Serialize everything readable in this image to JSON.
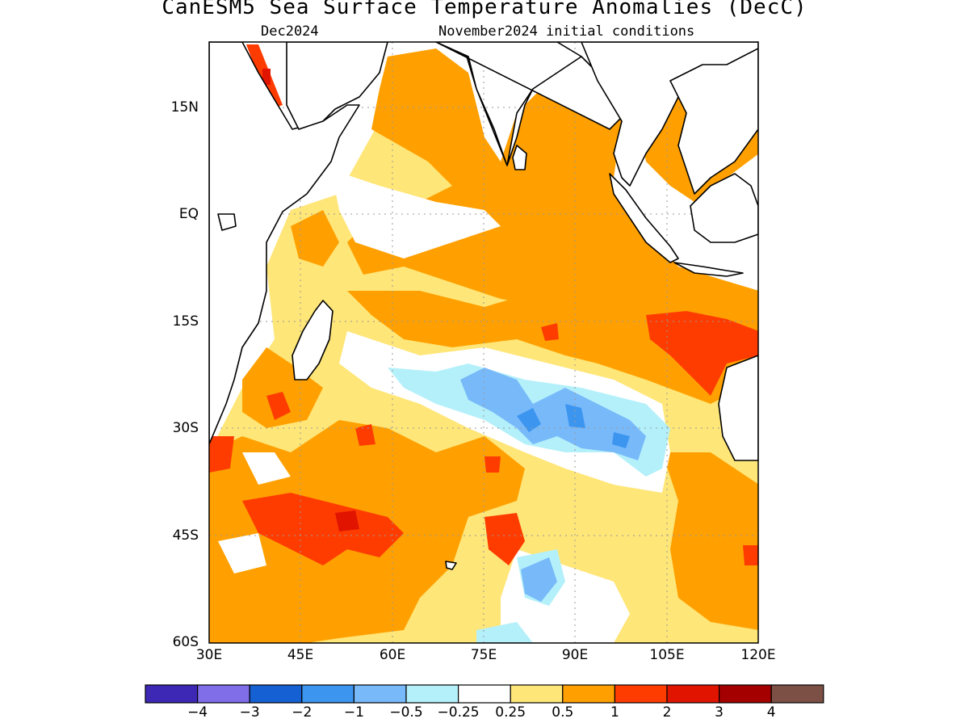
{
  "header": {
    "title": "CanESM5 Sea Surface Temperature Anomalies (DecC)",
    "valid_month": "Dec2024",
    "init_conditions": "November2024 initial conditions"
  },
  "map": {
    "lon_range": [
      30,
      120
    ],
    "lat_range": [
      -60,
      22
    ],
    "y_ticks": [
      "15N",
      "EQ",
      "15S",
      "30S",
      "45S",
      "60S"
    ],
    "x_ticks": [
      "30E",
      "45E",
      "60E",
      "75E",
      "90E",
      "105E",
      "120E"
    ],
    "grid": "dotted",
    "land_color": "#ffffff",
    "coast_color": "#000000"
  },
  "colorbar": {
    "colors": [
      "#3c28b4",
      "#7f6ee8",
      "#1560d2",
      "#3c96f0",
      "#78b9fa",
      "#b4f0fa",
      "#ffffff",
      "#ffe678",
      "#ffa000",
      "#ff3c00",
      "#e11400",
      "#a50000",
      "#7d5046"
    ],
    "labels": [
      "−4",
      "−3",
      "−2",
      "−1",
      "−0.5",
      "−0.25",
      "0.25",
      "0.5",
      "1",
      "2",
      "3",
      "4"
    ]
  },
  "chart_data": {
    "type": "heatmap",
    "title": "CanESM5 Sea Surface Temperature Anomalies (DecC)",
    "units": "DecC",
    "x_range_lon": [
      30,
      120
    ],
    "y_range_lat": [
      -60,
      22
    ],
    "levels": [
      -4,
      -3,
      -2,
      -1,
      -0.5,
      -0.25,
      0.25,
      0.5,
      1,
      2,
      3,
      4
    ],
    "regions": [
      {
        "area": "Arabian Sea / Bay of Bengal / eastern Indian Ocean",
        "anomaly_class": "0.5 to 1"
      },
      {
        "area": "Western equatorial Indian Ocean",
        "anomaly_class": "-0.25 to 0.5"
      },
      {
        "area": "Subtropical south Indian Ocean ~25S 75E-100E",
        "anomaly_class": "-1 to -0.25"
      },
      {
        "area": "Off NW Australia ~15S-20S 105E-120E",
        "anomaly_class": "1 to 2"
      },
      {
        "area": "Southern Ocean ~40S 35E-65E",
        "anomaly_class": "1 to 2"
      }
    ]
  }
}
